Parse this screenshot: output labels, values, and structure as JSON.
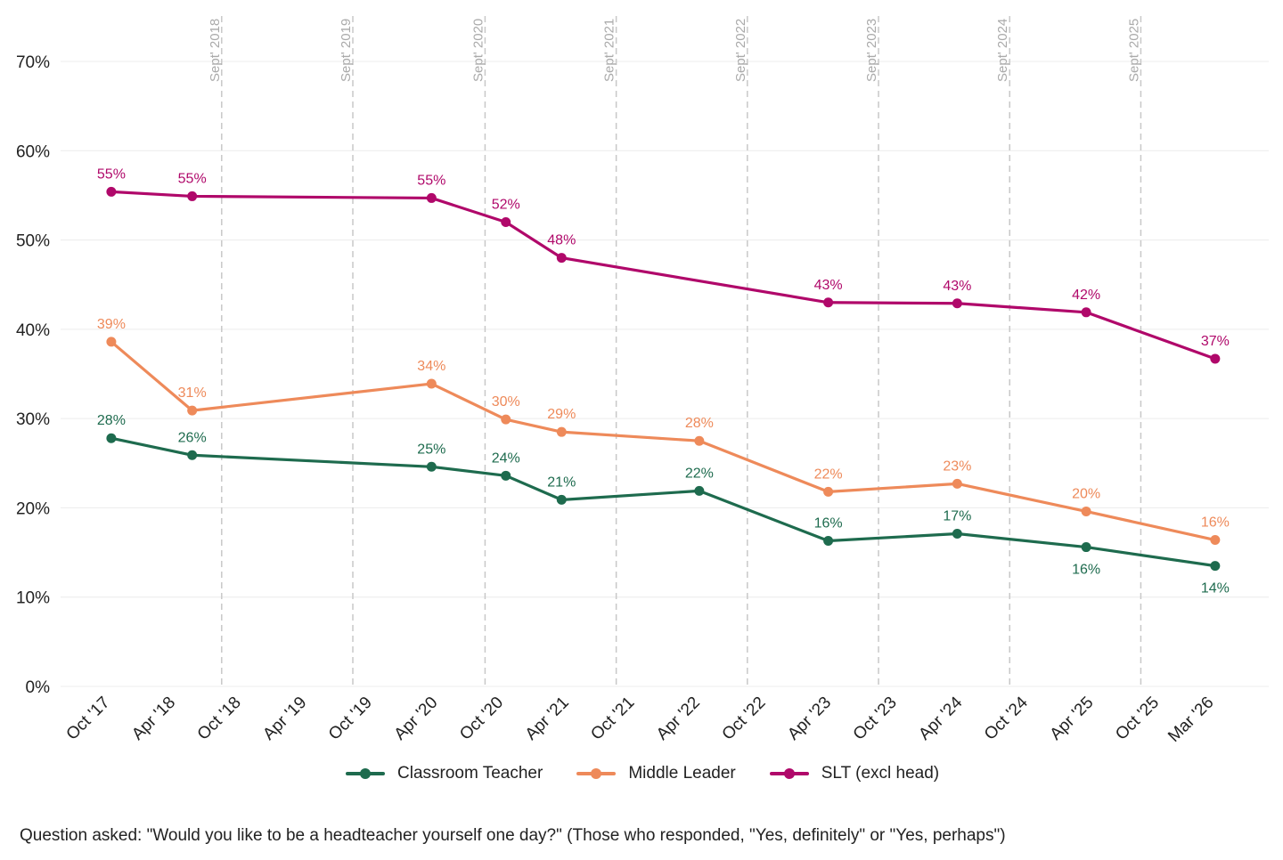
{
  "chart_data": {
    "type": "line",
    "title": "",
    "xlabel": "",
    "ylabel": "",
    "ylim": [
      0,
      70
    ],
    "y_ticks": [
      "0%",
      "10%",
      "20%",
      "30%",
      "40%",
      "50%",
      "60%",
      "70%"
    ],
    "y_tick_values": [
      0,
      10,
      20,
      30,
      40,
      50,
      60,
      70
    ],
    "x_unit": "months since Oct 2017",
    "x_ticks": [
      {
        "label": "Oct '17",
        "m": 0
      },
      {
        "label": "Apr '18",
        "m": 6
      },
      {
        "label": "Oct '18",
        "m": 12
      },
      {
        "label": "Apr '19",
        "m": 18
      },
      {
        "label": "Oct '19",
        "m": 24
      },
      {
        "label": "Apr '20",
        "m": 30
      },
      {
        "label": "Oct '20",
        "m": 36
      },
      {
        "label": "Apr '21",
        "m": 42
      },
      {
        "label": "Oct '21",
        "m": 48
      },
      {
        "label": "Apr '22",
        "m": 54
      },
      {
        "label": "Oct '22",
        "m": 60
      },
      {
        "label": "Apr '23",
        "m": 66
      },
      {
        "label": "Oct '23",
        "m": 72
      },
      {
        "label": "Apr '24",
        "m": 78
      },
      {
        "label": "Oct '24",
        "m": 84
      },
      {
        "label": "Apr '25",
        "m": 90
      },
      {
        "label": "Oct '25",
        "m": 96
      },
      {
        "label": "Mar '26",
        "m": 101
      }
    ],
    "reference_lines": [
      {
        "label": "Sept' 2018",
        "m": 10.5
      },
      {
        "label": "Sept' 2019",
        "m": 22.5
      },
      {
        "label": "Sept' 2020",
        "m": 34.6
      },
      {
        "label": "Sept' 2021",
        "m": 46.6
      },
      {
        "label": "Sept' 2022",
        "m": 58.6
      },
      {
        "label": "Sept' 2023",
        "m": 70.6
      },
      {
        "label": "Sept' 2024",
        "m": 82.6
      },
      {
        "label": "Sept' 2025",
        "m": 94.6
      }
    ],
    "series": [
      {
        "name": "Classroom Teacher",
        "color": "#1e6b4e",
        "label_pos": "above",
        "points": [
          {
            "m": 0.4,
            "v": 27.8,
            "label": "28%"
          },
          {
            "m": 7.8,
            "v": 25.9,
            "label": "26%"
          },
          {
            "m": 29.7,
            "v": 24.6,
            "label": "25%"
          },
          {
            "m": 36.5,
            "v": 23.6,
            "label": "24%"
          },
          {
            "m": 41.6,
            "v": 20.9,
            "label": "21%"
          },
          {
            "m": 54.2,
            "v": 21.9,
            "label": "22%"
          },
          {
            "m": 66.0,
            "v": 16.3,
            "label": "16%"
          },
          {
            "m": 77.8,
            "v": 17.1,
            "label": "17%"
          },
          {
            "m": 89.6,
            "v": 15.6,
            "label": "16%",
            "below": true
          },
          {
            "m": 101.4,
            "v": 13.5,
            "label": "14%",
            "below": true
          }
        ]
      },
      {
        "name": "Middle Leader",
        "color": "#ee8a5a",
        "label_pos": "above",
        "points": [
          {
            "m": 0.4,
            "v": 38.6,
            "label": "39%"
          },
          {
            "m": 7.8,
            "v": 30.9,
            "label": "31%"
          },
          {
            "m": 29.7,
            "v": 33.9,
            "label": "34%"
          },
          {
            "m": 36.5,
            "v": 29.9,
            "label": "30%"
          },
          {
            "m": 41.6,
            "v": 28.5,
            "label": "29%"
          },
          {
            "m": 54.2,
            "v": 27.5,
            "label": "28%"
          },
          {
            "m": 66.0,
            "v": 21.8,
            "label": "22%"
          },
          {
            "m": 77.8,
            "v": 22.7,
            "label": "23%"
          },
          {
            "m": 89.6,
            "v": 19.6,
            "label": "20%"
          },
          {
            "m": 101.4,
            "v": 16.4,
            "label": "16%"
          }
        ]
      },
      {
        "name": "SLT (excl head)",
        "color": "#b0086a",
        "label_pos": "above",
        "points": [
          {
            "m": 0.4,
            "v": 55.4,
            "label": "55%"
          },
          {
            "m": 7.8,
            "v": 54.9,
            "label": "55%"
          },
          {
            "m": 29.7,
            "v": 54.7,
            "label": "55%"
          },
          {
            "m": 36.5,
            "v": 52.0,
            "label": "52%"
          },
          {
            "m": 41.6,
            "v": 48.0,
            "label": "48%"
          },
          {
            "m": 66.0,
            "v": 43.0,
            "label": "43%"
          },
          {
            "m": 77.8,
            "v": 42.9,
            "label": "43%"
          },
          {
            "m": 89.6,
            "v": 41.9,
            "label": "42%"
          },
          {
            "m": 101.4,
            "v": 36.7,
            "label": "37%"
          }
        ]
      }
    ],
    "legend": {
      "position": "bottom-center"
    },
    "grid": true
  },
  "legend": {
    "items": [
      {
        "label": "Classroom Teacher",
        "color": "#1e6b4e"
      },
      {
        "label": "Middle Leader",
        "color": "#ee8a5a"
      },
      {
        "label": "SLT (excl head)",
        "color": "#b0086a"
      }
    ]
  },
  "footnote": "Question asked: \"Would you like to be a headteacher yourself one day?\" (Those who responded, \"Yes, definitely\" or \"Yes, perhaps\")"
}
